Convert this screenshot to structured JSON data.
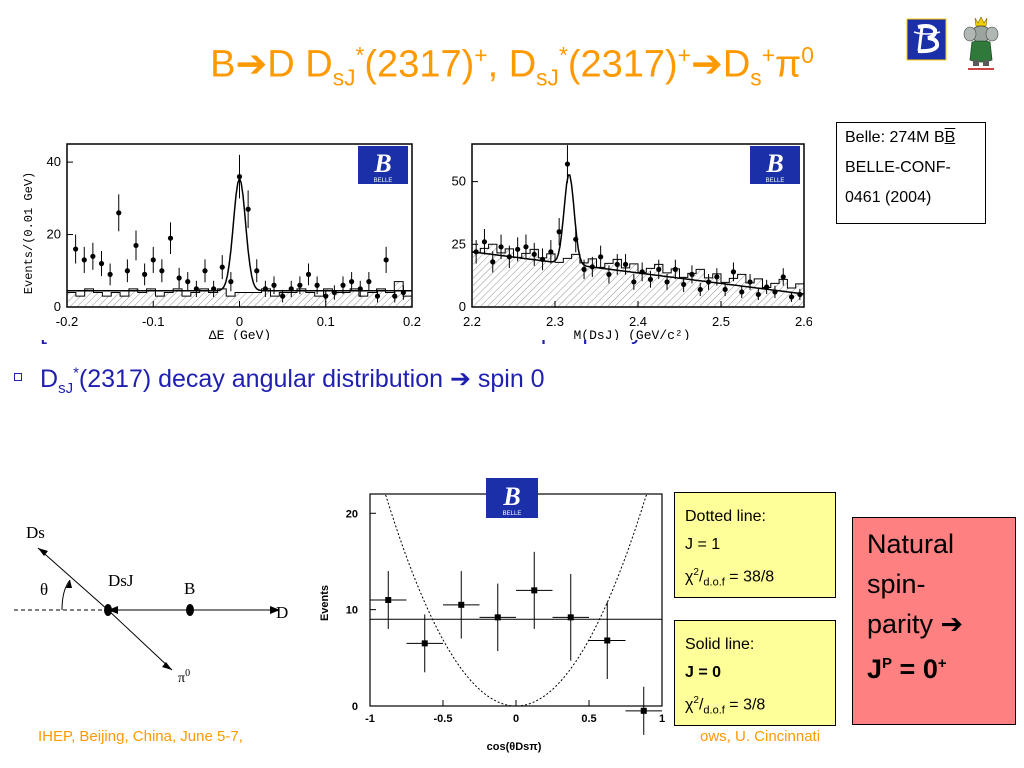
{
  "title": {
    "part1": "B",
    "part2": "D D",
    "sub1": "sJ",
    "sup1": "*",
    "part3": "(2317)",
    "sup2": "+",
    "part4": ", D",
    "sub2": "sJ",
    "sup3": "*",
    "part5": "(2317)",
    "sup4": "+",
    "part6": "D",
    "sub3": "s",
    "sup5": "+",
    "part7": "π",
    "sup6": "0"
  },
  "logo_text": "BELLE",
  "ref_box": {
    "line1": "Belle: 274M B",
    "line1_bar": "B",
    "line2": "BELLE-CONF-",
    "line3": "0461 (2004)"
  },
  "bullets": {
    "b1_hidden_prefix": "",
    "b2_prefix": "[",
    "b2_suffix": " natural spin-parity",
    "b3_d": "D",
    "b3_sub": "sJ",
    "b3_sup": "*",
    "b3_text": "(2317) decay angular distribution ",
    "b3_result": " spin 0"
  },
  "diagram": {
    "ds": "Ds",
    "dsj": "DsJ",
    "theta": "θ",
    "b": "B",
    "d": "D",
    "pi0": "π",
    "pi0_sup": "0"
  },
  "dotted_box": {
    "title": "Dotted line:",
    "j": "J = 1",
    "chi": "χ",
    "chi_sup": "2",
    "chi_sub": "d.o.f",
    "chi_val": " = 38/8"
  },
  "solid_box": {
    "title": "Solid line:",
    "j": "J = 0",
    "chi": "χ",
    "chi_sup": "2",
    "chi_sub": "d.o.f",
    "chi_val": " = 3/8"
  },
  "natural_box": {
    "line1": "Natural",
    "line2": "spin-",
    "line3": "parity ",
    "jp": "J",
    "jp_sup": "P",
    "jp_eq": " = 0",
    "jp_sup2": "+"
  },
  "footer": {
    "left": "IHEP, Beijing, China, June 5-7,",
    "right": "ows, U. Cincinnati"
  },
  "chart_data": [
    {
      "type": "scatter",
      "xlabel": "ΔE (GeV)",
      "ylabel": "Events/(0.01 GeV)",
      "xlim": [
        -0.2,
        0.2
      ],
      "ylim": [
        0,
        45
      ],
      "xticks": [
        "-0.2",
        "-0.1",
        "0",
        "0.1",
        "0.2"
      ],
      "yticks": [
        "0",
        "20",
        "40"
      ],
      "x": [
        -0.19,
        -0.18,
        -0.17,
        -0.16,
        -0.15,
        -0.14,
        -0.13,
        -0.12,
        -0.11,
        -0.1,
        -0.09,
        -0.08,
        -0.07,
        -0.06,
        -0.05,
        -0.04,
        -0.03,
        -0.02,
        -0.01,
        0.0,
        0.01,
        0.02,
        0.03,
        0.04,
        0.05,
        0.06,
        0.07,
        0.08,
        0.09,
        0.1,
        0.11,
        0.12,
        0.13,
        0.14,
        0.15,
        0.16,
        0.17,
        0.18,
        0.19
      ],
      "y": [
        16,
        13,
        14,
        12,
        9,
        26,
        10,
        17,
        9,
        13,
        10,
        19,
        8,
        7,
        5,
        10,
        5,
        11,
        7,
        36,
        27,
        10,
        5,
        6,
        3,
        5,
        6,
        9,
        6,
        3,
        4,
        6,
        7,
        5,
        7,
        3,
        13,
        3,
        4
      ]
    },
    {
      "type": "scatter",
      "xlabel": "M(DsJ) (GeV/c²)",
      "ylabel": "",
      "xlim": [
        2.2,
        2.6
      ],
      "ylim": [
        0,
        65
      ],
      "xticks": [
        "2.2",
        "2.3",
        "2.4",
        "2.5",
        "2.6"
      ],
      "yticks": [
        "0",
        "25",
        "50"
      ],
      "x": [
        2.205,
        2.215,
        2.225,
        2.235,
        2.245,
        2.255,
        2.265,
        2.275,
        2.285,
        2.295,
        2.305,
        2.315,
        2.325,
        2.335,
        2.345,
        2.355,
        2.365,
        2.375,
        2.385,
        2.395,
        2.405,
        2.415,
        2.425,
        2.435,
        2.445,
        2.455,
        2.465,
        2.475,
        2.485,
        2.495,
        2.505,
        2.515,
        2.525,
        2.535,
        2.545,
        2.555,
        2.565,
        2.575,
        2.585,
        2.595
      ],
      "y": [
        22,
        26,
        18,
        24,
        20,
        23,
        24,
        21,
        19,
        22,
        30,
        57,
        27,
        15,
        16,
        20,
        13,
        17,
        17,
        10,
        14,
        11,
        15,
        10,
        15,
        9,
        13,
        7,
        10,
        12,
        7,
        14,
        6,
        10,
        5,
        8,
        6,
        12,
        4,
        5
      ]
    },
    {
      "type": "scatter",
      "xlabel": "cos(θDsπ)",
      "ylabel": "Events",
      "xlim": [
        -1,
        1
      ],
      "ylim": [
        0,
        22
      ],
      "xticks": [
        "-1",
        "-0.5",
        "0",
        "0.5",
        "1"
      ],
      "yticks": [
        "0",
        "10",
        "20"
      ],
      "x": [
        -0.875,
        -0.625,
        -0.375,
        -0.125,
        0.125,
        0.375,
        0.625,
        0.875
      ],
      "y": [
        11,
        6.5,
        10.5,
        9.2,
        12,
        9.2,
        6.8,
        -0.5
      ],
      "yerr": [
        3,
        3,
        3.5,
        3.5,
        4,
        4.5,
        4,
        2.5
      ],
      "series": [
        {
          "name": "J = 1",
          "style": "dotted",
          "curve": "parabola"
        },
        {
          "name": "J = 0",
          "style": "solid",
          "value": 9
        }
      ]
    }
  ]
}
